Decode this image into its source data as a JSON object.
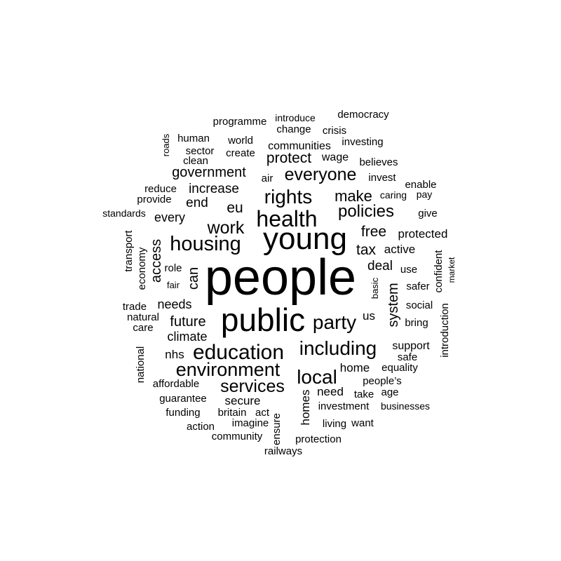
{
  "words": [
    "people",
    "young",
    "public",
    "health",
    "education",
    "housing",
    "environment",
    "including",
    "party",
    "local",
    "services",
    "everyone",
    "rights",
    "policies",
    "work",
    "make",
    "government",
    "free",
    "tax",
    "system",
    "eu",
    "protect",
    "access",
    "future",
    "increase",
    "end",
    "deal",
    "can",
    "needs",
    "climate",
    "every",
    "active",
    "protected",
    "home",
    "support",
    "nhs",
    "need",
    "secure",
    "homes",
    "us",
    "communities",
    "wage",
    "invest",
    "democracy",
    "programme",
    "human",
    "world",
    "sector",
    "create",
    "clean",
    "air",
    "introduce",
    "change",
    "crisis",
    "investing",
    "believes",
    "enable",
    "pay",
    "give",
    "reduce",
    "provide",
    "standards",
    "roads",
    "transport",
    "economy",
    "role",
    "fair",
    "trade",
    "natural",
    "care",
    "national",
    "affordable",
    "guarantee",
    "funding",
    "action",
    "community",
    "britain",
    "act",
    "imagine",
    "ensure",
    "railways",
    "protection",
    "living",
    "want",
    "investment",
    "businesses",
    "take",
    "age",
    "people’s",
    "equality",
    "safe",
    "bring",
    "social",
    "safer",
    "use",
    "basic",
    "confident",
    "market",
    "introduction",
    "caring"
  ]
}
